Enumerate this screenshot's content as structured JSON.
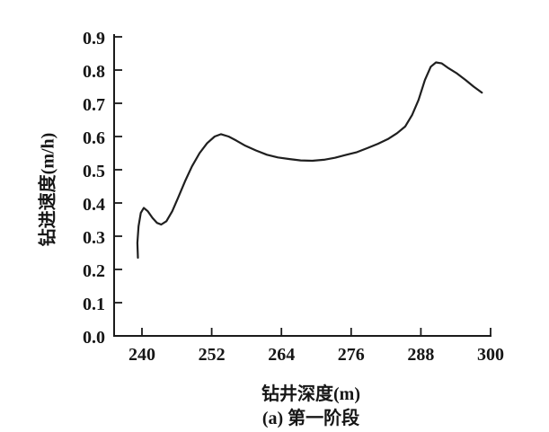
{
  "chart_data": {
    "type": "line",
    "title": "",
    "xlabel": "钻井深度(m)",
    "ylabel": "钻进速度(m/h)",
    "caption": "(a) 第一阶段",
    "xlim": [
      235.2,
      300
    ],
    "ylim": [
      0,
      0.908
    ],
    "xticks": [
      240,
      252,
      264,
      276,
      288,
      300
    ],
    "xtick_labels": [
      "240",
      "252",
      "264",
      "276",
      "288",
      "300"
    ],
    "yticks": [
      0,
      0.1,
      0.2,
      0.3,
      0.4,
      0.5,
      0.6,
      0.7,
      0.8,
      0.9
    ],
    "ytick_labels": [
      "0.0",
      "0.1",
      "0.2",
      "0.3",
      "0.4",
      "0.5",
      "0.6",
      "0.7",
      "0.8",
      "0.9"
    ],
    "grid": false,
    "legend": "none",
    "line_color": "#1f1f1f",
    "axis_color": "#1a1a1a",
    "series": [
      {
        "name": "钻进速度",
        "points": [
          [
            239.3,
            0.235
          ],
          [
            239.2,
            0.28
          ],
          [
            239.4,
            0.33
          ],
          [
            239.8,
            0.37
          ],
          [
            240.3,
            0.385
          ],
          [
            241.0,
            0.375
          ],
          [
            241.8,
            0.355
          ],
          [
            242.6,
            0.34
          ],
          [
            243.3,
            0.335
          ],
          [
            244.2,
            0.345
          ],
          [
            245.2,
            0.375
          ],
          [
            246.2,
            0.415
          ],
          [
            247.4,
            0.465
          ],
          [
            248.6,
            0.51
          ],
          [
            249.9,
            0.55
          ],
          [
            251.2,
            0.58
          ],
          [
            252.5,
            0.6
          ],
          [
            253.6,
            0.607
          ],
          [
            254.9,
            0.6
          ],
          [
            256.2,
            0.588
          ],
          [
            257.8,
            0.572
          ],
          [
            259.6,
            0.558
          ],
          [
            261.5,
            0.545
          ],
          [
            263.4,
            0.537
          ],
          [
            265.4,
            0.532
          ],
          [
            267.3,
            0.528
          ],
          [
            269.3,
            0.527
          ],
          [
            271.3,
            0.53
          ],
          [
            273.2,
            0.536
          ],
          [
            275.2,
            0.545
          ],
          [
            277.0,
            0.553
          ],
          [
            278.8,
            0.565
          ],
          [
            280.6,
            0.578
          ],
          [
            282.3,
            0.592
          ],
          [
            283.9,
            0.61
          ],
          [
            285.3,
            0.63
          ],
          [
            286.5,
            0.665
          ],
          [
            287.6,
            0.71
          ],
          [
            288.7,
            0.77
          ],
          [
            289.7,
            0.81
          ],
          [
            290.6,
            0.823
          ],
          [
            291.6,
            0.82
          ],
          [
            292.8,
            0.805
          ],
          [
            294.2,
            0.79
          ],
          [
            295.7,
            0.77
          ],
          [
            297.1,
            0.75
          ],
          [
            298.5,
            0.732
          ]
        ]
      }
    ]
  }
}
